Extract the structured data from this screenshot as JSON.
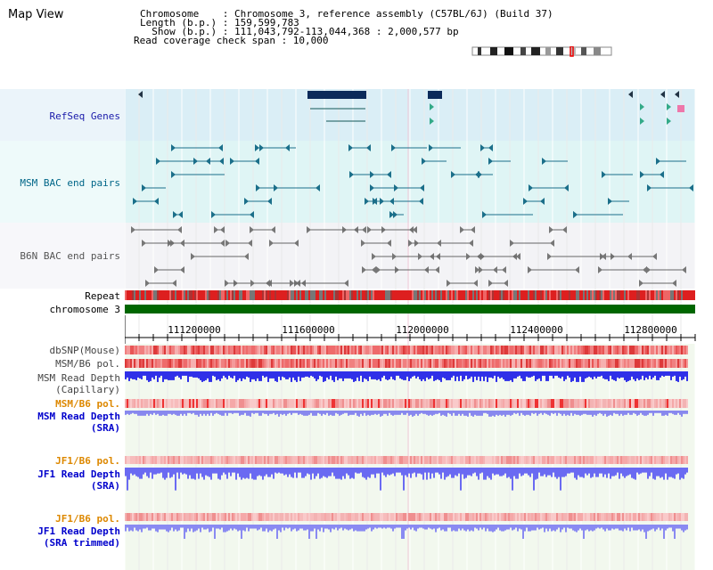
{
  "header": {
    "title": "Map View",
    "chromosome_line": "Chromosome    : Chromosome 3, reference assembly (C57BL/6J) (Build 37)",
    "length_line": "Length (b.p.) : 159,599,783",
    "show_line": "  Show (b.p.) : 111,043,792-113,044,368 : 2,000,577 bp",
    "coverage_line": "Read coverage check span : 10,000"
  },
  "tracks": {
    "refseq": "RefSeq Genes",
    "msm_bac": "MSM BAC end pairs",
    "b6n_bac": "B6N BAC end pairs",
    "repeat": "Repeat",
    "chromosome": "chromosome 3",
    "dbsnp": "dbSNP(Mouse)",
    "msm_b6_pol": "MSM/B6 pol.",
    "msm_read_depth_cap": "MSM Read Depth",
    "capillary": "(Capillary)",
    "msm_b6_pol2": "MSM/B6 pol.",
    "msm_read_depth_sra": "MSM Read Depth",
    "sra1": "(SRA)",
    "jf1_b6_pol": "JF1/B6 pol.",
    "jf1_read_depth": "JF1 Read Depth",
    "sra2": "(SRA)",
    "jf1_b6_pol2": "JF1/B6 pol.",
    "jf1_read_depth_trim": "JF1 Read Depth",
    "sra_trimmed": "(SRA trimmed)"
  },
  "axis": {
    "ticks": [
      "111200000",
      "111600000",
      "112000000",
      "112400000",
      "112800000"
    ]
  },
  "colors": {
    "refseq_label": "#1a1aaa",
    "msm_bac_label": "#006688",
    "b6n_label": "#555555",
    "pol_label": "#dd8800",
    "depth_label": "#0000cc",
    "chromosome_bar": "#006600"
  }
}
